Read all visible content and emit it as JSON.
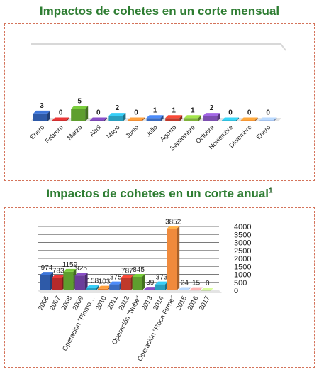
{
  "chart_data": [
    {
      "type": "bar",
      "title": "Impactos de cohetes en un corte mensual",
      "categories": [
        "Enero",
        "Febrero",
        "Marzo",
        "Abril",
        "Mayo",
        "Junio",
        "Julio",
        "Agosto",
        "Septiembre",
        "Octubre",
        "Noviembre",
        "Diciembre",
        "Enero"
      ],
      "values": [
        3,
        0,
        5,
        0,
        2,
        0,
        1,
        1,
        1,
        2,
        0,
        0,
        0
      ],
      "colors": [
        "#2e5aa8",
        "#b52a2a",
        "#5e9e2e",
        "#6a3d9a",
        "#2a9fbf",
        "#e07b2e",
        "#3b6cc0",
        "#c0392b",
        "#7fb13a",
        "#7d4fb0",
        "#2aa5c0",
        "#e8822e",
        "#8fa8d8"
      ],
      "grid": false
    },
    {
      "type": "bar",
      "title": "Impactos de cohetes en un corte anual",
      "title_sup": "1",
      "categories": [
        "2006",
        "2007",
        "2008",
        "2009",
        "Operación \"Plomo…",
        "2010",
        "2011",
        "2012",
        "Operación \"Nube\"",
        "2013",
        "2014",
        "Operación \"Roca Firme\"",
        "2015",
        "2016",
        "2017"
      ],
      "values": [
        974,
        783,
        1159,
        925,
        158,
        103,
        375,
        787,
        845,
        39,
        373,
        3852,
        24,
        15,
        0
      ],
      "labels": [
        "974",
        "783",
        "1159",
        "925",
        "158",
        "103",
        "375",
        "787",
        "845",
        "39",
        "373",
        "3852",
        "24",
        "15",
        "0"
      ],
      "colors": [
        "#2e5aa8",
        "#b52a2a",
        "#5e9e2e",
        "#6a3d9a",
        "#2a9fbf",
        "#e07b2e",
        "#3b6cc0",
        "#c0392b",
        "#5e9e2e",
        "#6a3d9a",
        "#2a9fbf",
        "#f08a3c",
        "#8fa8d8",
        "#d88a8a",
        "#a8c878"
      ],
      "yticks": [
        "4000",
        "3500",
        "3000",
        "2500",
        "2000",
        "1500",
        "1000",
        "500",
        "0"
      ],
      "ylim": [
        0,
        4000
      ],
      "grid": true
    }
  ]
}
